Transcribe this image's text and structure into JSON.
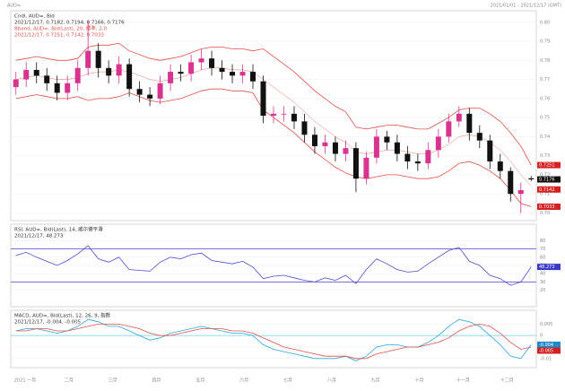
{
  "header": "AUD=",
  "range_text": "2021/01/01 - 2021/12/17 (GMT)",
  "months": [
    "2021 一月",
    "二月",
    "三月",
    "四月",
    "五月",
    "六月",
    "七月",
    "八月",
    "九月",
    "十月",
    "十一月",
    "十二月"
  ],
  "chart_data": [
    {
      "type": "candlestick",
      "title": "Cndl, AUD=, Bid",
      "subtitle": "2021/12/17, 0.7182, 0.7194, 0.7166, 0.7176",
      "band_title": "Bband, AUD=, Bid(Last), 20, 標準, 2.0",
      "band_subtitle": "2021/12/17, 0.7251, 0.7142, 0.7033",
      "up_color": "#d8338f",
      "down_color": "#111111",
      "open": [
        0.766,
        0.77,
        0.775,
        0.772,
        0.768,
        0.763,
        0.768,
        0.776,
        0.785,
        0.776,
        0.772,
        0.778,
        0.765,
        0.762,
        0.76,
        0.768,
        0.774,
        0.773,
        0.779,
        0.781,
        0.776,
        0.774,
        0.772,
        0.774,
        0.769,
        0.751,
        0.752,
        0.752,
        0.748,
        0.741,
        0.735,
        0.737,
        0.731,
        0.734,
        0.718,
        0.729,
        0.74,
        0.737,
        0.731,
        0.727,
        0.726,
        0.733,
        0.74,
        0.748,
        0.752,
        0.742,
        0.738,
        0.727,
        0.722,
        0.71,
        0.7182
      ],
      "high": [
        0.774,
        0.779,
        0.779,
        0.776,
        0.772,
        0.772,
        0.78,
        0.801,
        0.789,
        0.78,
        0.782,
        0.781,
        0.769,
        0.766,
        0.772,
        0.778,
        0.778,
        0.783,
        0.786,
        0.785,
        0.78,
        0.778,
        0.778,
        0.778,
        0.772,
        0.756,
        0.756,
        0.756,
        0.752,
        0.745,
        0.741,
        0.74,
        0.738,
        0.737,
        0.732,
        0.744,
        0.743,
        0.741,
        0.735,
        0.731,
        0.737,
        0.744,
        0.752,
        0.756,
        0.755,
        0.746,
        0.741,
        0.731,
        0.724,
        0.716,
        0.7194
      ],
      "low": [
        0.762,
        0.766,
        0.768,
        0.764,
        0.759,
        0.759,
        0.764,
        0.772,
        0.771,
        0.768,
        0.768,
        0.761,
        0.758,
        0.756,
        0.757,
        0.764,
        0.769,
        0.769,
        0.775,
        0.772,
        0.77,
        0.768,
        0.768,
        0.765,
        0.747,
        0.747,
        0.748,
        0.744,
        0.737,
        0.731,
        0.731,
        0.727,
        0.727,
        0.711,
        0.715,
        0.726,
        0.733,
        0.727,
        0.723,
        0.722,
        0.723,
        0.729,
        0.737,
        0.745,
        0.738,
        0.734,
        0.723,
        0.718,
        0.706,
        0.7,
        0.7166
      ],
      "close": [
        0.77,
        0.775,
        0.772,
        0.768,
        0.763,
        0.768,
        0.776,
        0.785,
        0.776,
        0.772,
        0.778,
        0.765,
        0.762,
        0.76,
        0.768,
        0.774,
        0.773,
        0.779,
        0.781,
        0.776,
        0.774,
        0.772,
        0.774,
        0.769,
        0.751,
        0.752,
        0.752,
        0.748,
        0.741,
        0.735,
        0.737,
        0.731,
        0.734,
        0.718,
        0.729,
        0.74,
        0.737,
        0.731,
        0.727,
        0.726,
        0.733,
        0.74,
        0.748,
        0.752,
        0.742,
        0.738,
        0.727,
        0.722,
        0.71,
        0.712,
        0.7176
      ],
      "bands": {
        "color": "#e2504a",
        "upper": [
          0.78,
          0.781,
          0.782,
          0.781,
          0.78,
          0.78,
          0.781,
          0.787,
          0.788,
          0.788,
          0.789,
          0.785,
          0.783,
          0.781,
          0.78,
          0.781,
          0.782,
          0.784,
          0.786,
          0.787,
          0.787,
          0.786,
          0.786,
          0.785,
          0.786,
          0.782,
          0.778,
          0.774,
          0.769,
          0.764,
          0.76,
          0.756,
          0.753,
          0.745,
          0.744,
          0.745,
          0.746,
          0.746,
          0.745,
          0.744,
          0.744,
          0.747,
          0.75,
          0.754,
          0.755,
          0.755,
          0.752,
          0.748,
          0.742,
          0.735,
          0.7251
        ],
        "middle": [
          0.77,
          0.771,
          0.772,
          0.771,
          0.77,
          0.77,
          0.771,
          0.773,
          0.774,
          0.774,
          0.775,
          0.774,
          0.772,
          0.77,
          0.769,
          0.77,
          0.771,
          0.773,
          0.775,
          0.776,
          0.776,
          0.775,
          0.775,
          0.774,
          0.77,
          0.766,
          0.762,
          0.758,
          0.753,
          0.748,
          0.744,
          0.74,
          0.737,
          0.732,
          0.731,
          0.732,
          0.733,
          0.733,
          0.732,
          0.731,
          0.731,
          0.733,
          0.736,
          0.74,
          0.741,
          0.74,
          0.737,
          0.733,
          0.727,
          0.72,
          0.7142
        ],
        "lower": [
          0.76,
          0.761,
          0.762,
          0.761,
          0.76,
          0.76,
          0.761,
          0.759,
          0.76,
          0.76,
          0.761,
          0.763,
          0.761,
          0.759,
          0.758,
          0.759,
          0.76,
          0.762,
          0.764,
          0.765,
          0.765,
          0.764,
          0.764,
          0.763,
          0.754,
          0.75,
          0.746,
          0.742,
          0.737,
          0.732,
          0.728,
          0.724,
          0.721,
          0.719,
          0.718,
          0.719,
          0.72,
          0.72,
          0.719,
          0.718,
          0.718,
          0.719,
          0.722,
          0.726,
          0.727,
          0.725,
          0.722,
          0.718,
          0.712,
          0.705,
          0.7033
        ]
      },
      "ylim": [
        0.696,
        0.806
      ],
      "yticks": [
        {
          "value": 0.7,
          "label": "0.70"
        },
        0.71,
        0.72,
        0.73,
        0.74,
        0.75,
        0.76,
        0.77,
        0.78,
        0.79,
        {
          "value": 0.8,
          "label": "0.80"
        }
      ]
    },
    {
      "type": "line",
      "title": "RSI, AUD=, Bid(Last), 14, 威尔德平滑",
      "subtitle": "2021/12/17, 48.273",
      "series": [
        {
          "color": "#4a4ad0",
          "values": [
            62,
            66,
            60,
            55,
            50,
            56,
            64,
            74,
            58,
            54,
            60,
            45,
            44,
            43,
            54,
            60,
            58,
            63,
            65,
            56,
            54,
            52,
            55,
            48,
            34,
            37,
            38,
            35,
            32,
            30,
            35,
            32,
            38,
            28,
            45,
            58,
            52,
            45,
            42,
            43,
            52,
            60,
            68,
            72,
            55,
            50,
            38,
            34,
            26,
            30,
            48.273
          ]
        }
      ],
      "levels": [
        30,
        70
      ],
      "level_color": "#4a4ad0",
      "ylim": [
        0,
        100
      ],
      "yticks": [
        20,
        30,
        40,
        50,
        60,
        70,
        80
      ]
    },
    {
      "type": "line",
      "title": "MACD, AUD=, Bid(Last), 12, 26, 9, 指数",
      "subtitle": "2021/12/17, -0.004, -0.005",
      "series": [
        {
          "color": "#2aa6e0",
          "values": [
            0.002,
            0.003,
            0.003,
            0.002,
            0.001,
            0.002,
            0.004,
            0.007,
            0.006,
            0.004,
            0.004,
            0.002,
            0.0,
            -0.002,
            -0.001,
            0.001,
            0.002,
            0.003,
            0.004,
            0.003,
            0.002,
            0.001,
            0.001,
            0.0,
            -0.004,
            -0.006,
            -0.007,
            -0.008,
            -0.009,
            -0.01,
            -0.01,
            -0.01,
            -0.009,
            -0.011,
            -0.009,
            -0.005,
            -0.004,
            -0.004,
            -0.005,
            -0.005,
            -0.003,
            0.0,
            0.004,
            0.007,
            0.006,
            0.004,
            0.0,
            -0.004,
            -0.009,
            -0.01,
            -0.004
          ]
        },
        {
          "color": "#e2504a",
          "values": [
            0.002,
            0.002,
            0.003,
            0.003,
            0.002,
            0.002,
            0.003,
            0.004,
            0.005,
            0.005,
            0.005,
            0.004,
            0.003,
            0.001,
            0.0,
            0.0,
            0.001,
            0.002,
            0.003,
            0.003,
            0.003,
            0.002,
            0.002,
            0.001,
            -0.001,
            -0.003,
            -0.005,
            -0.006,
            -0.007,
            -0.008,
            -0.009,
            -0.009,
            -0.009,
            -0.01,
            -0.01,
            -0.008,
            -0.007,
            -0.006,
            -0.005,
            -0.005,
            -0.004,
            -0.003,
            -0.001,
            0.002,
            0.004,
            0.005,
            0.004,
            0.001,
            -0.003,
            -0.006,
            -0.005
          ]
        }
      ],
      "levels": [
        0
      ],
      "level_color": "#6fd0f0",
      "ylim": [
        -0.014,
        0.011
      ],
      "yticks": [
        -0.01,
        -0.005,
        0,
        0.005
      ]
    }
  ]
}
